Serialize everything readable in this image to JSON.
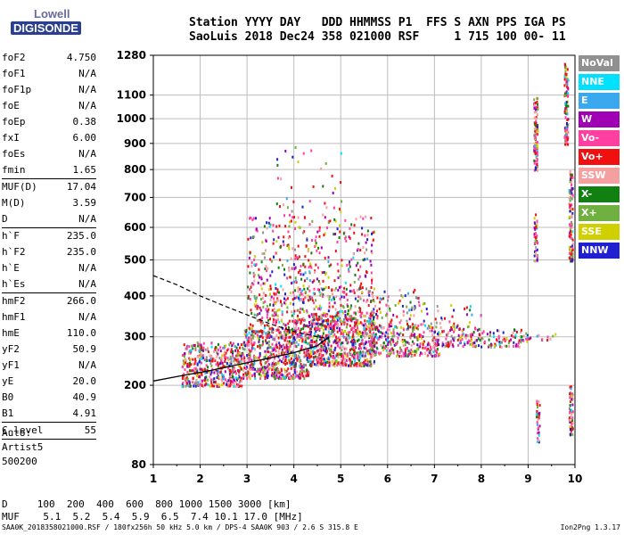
{
  "logo": {
    "line1": "Lowell",
    "line2": "DIGISONDE"
  },
  "header": {
    "line1": "Station YYYY DAY   DDD HHMMSS P1  FFS S AXN PPS IGA PS",
    "line2": "SaoLuis 2018 Dec24 358 021000 RSF     1 715 100 00- 11"
  },
  "params": [
    {
      "k": "foF2",
      "v": "4.750"
    },
    {
      "k": "foF1",
      "v": "N/A"
    },
    {
      "k": "foF1p",
      "v": "N/A"
    },
    {
      "k": "foE",
      "v": "N/A"
    },
    {
      "k": "foEp",
      "v": "0.38"
    },
    {
      "k": "fxI",
      "v": "6.00"
    },
    {
      "k": "foEs",
      "v": "N/A"
    },
    {
      "k": "fmin",
      "v": "1.65",
      "sep": true
    },
    {
      "k": "MUF(D)",
      "v": "17.04"
    },
    {
      "k": "M(D)",
      "v": "3.59"
    },
    {
      "k": "D",
      "v": "N/A",
      "sep": true
    },
    {
      "k": "h`F",
      "v": "235.0"
    },
    {
      "k": "h`F2",
      "v": "235.0"
    },
    {
      "k": "h`E",
      "v": "N/A"
    },
    {
      "k": "h`Es",
      "v": "N/A",
      "sep": true
    },
    {
      "k": "hmF2",
      "v": "266.0"
    },
    {
      "k": "hmF1",
      "v": "N/A"
    },
    {
      "k": "hmE",
      "v": "110.0"
    },
    {
      "k": "yF2",
      "v": "50.9"
    },
    {
      "k": "yF1",
      "v": "N/A"
    },
    {
      "k": "yE",
      "v": "20.0"
    },
    {
      "k": "B0",
      "v": "40.9"
    },
    {
      "k": "B1",
      "v": "4.91",
      "sep": true
    },
    {
      "k": "C-level",
      "v": "55",
      "sep": true
    }
  ],
  "auto": {
    "l1": "Auto:",
    "l2": "Artist5",
    "l3": "500200"
  },
  "bottom": {
    "d_row": "D     100  200  400  600  800 1000 1500 3000 [km]",
    "muf_row": "MUF    5.1  5.2  5.4  5.9  6.5  7.4 10.1 17.0 [MHz]"
  },
  "footer": {
    "text": "SAA0K_2018358021000.RSF / 180fx256h 50 kHz 5.0 km / DPS-4 SAA0K 903 / 2.6 S 315.8 E",
    "version": "Ion2Png 1.3.17"
  },
  "legend": [
    {
      "label": "NoVal",
      "color": "#909090"
    },
    {
      "label": "NNE",
      "color": "#00e0ff"
    },
    {
      "label": "E",
      "color": "#3aa8ee"
    },
    {
      "label": "W",
      "color": "#a000b4"
    },
    {
      "label": "Vo-",
      "color": "#ff40a0"
    },
    {
      "label": "Vo+",
      "color": "#f01010"
    },
    {
      "label": "SSW",
      "color": "#f4a0a0"
    },
    {
      "label": "X-",
      "color": "#108010"
    },
    {
      "label": "X+",
      "color": "#70b040"
    },
    {
      "label": "SSE",
      "color": "#d0d000"
    },
    {
      "label": "NNW",
      "color": "#2020d0"
    }
  ],
  "chart_data": {
    "type": "scatter",
    "xlabel": "",
    "ylabel": "",
    "x_ticks": [
      "1",
      "2",
      "3",
      "4",
      "5",
      "6",
      "7",
      "8",
      "9",
      "10"
    ],
    "xlim": [
      1,
      10
    ],
    "y_ticks": [
      "80",
      "200",
      "300",
      "400",
      "500",
      "600",
      "700",
      "800",
      "900",
      "1000",
      "1100",
      "1280"
    ],
    "y_tick_values": [
      80,
      200,
      300,
      400,
      500,
      600,
      700,
      800,
      900,
      1000,
      1100,
      1280
    ],
    "ylim": [
      80,
      1280
    ],
    "y_scale": "sqrt",
    "grid": true,
    "bands": [
      {
        "x": [
          1.6,
          2.9
        ],
        "y": [
          200,
          290
        ],
        "density": 1.6
      },
      {
        "x": [
          2.9,
          4.3
        ],
        "y": [
          215,
          320
        ],
        "density": 1.8
      },
      {
        "x": [
          4.3,
          5.7
        ],
        "y": [
          240,
          360
        ],
        "density": 1.8
      },
      {
        "x": [
          5.6,
          7.1
        ],
        "y": [
          260,
          330
        ],
        "density": 1.4
      },
      {
        "x": [
          7.1,
          9.0
        ],
        "y": [
          280,
          320
        ],
        "density": 1.0
      },
      {
        "x": [
          9.0,
          9.6
        ],
        "y": [
          295,
          312
        ],
        "density": 0.5
      },
      {
        "x": [
          3.0,
          5.7
        ],
        "y": [
          320,
          420
        ],
        "density": 0.7
      },
      {
        "x": [
          3.0,
          5.7
        ],
        "y": [
          420,
          640
        ],
        "density": 0.35
      },
      {
        "x": [
          3.6,
          5.0
        ],
        "y": [
          640,
          900
        ],
        "density": 0.08
      },
      {
        "x": [
          5.6,
          6.8
        ],
        "y": [
          330,
          420
        ],
        "density": 0.4
      },
      {
        "x": [
          6.8,
          8.0
        ],
        "y": [
          320,
          380
        ],
        "density": 0.3
      }
    ],
    "strips": [
      {
        "x": 9.15,
        "y": [
          800,
          1100
        ],
        "density": 0.6
      },
      {
        "x": 9.15,
        "y": [
          500,
          650
        ],
        "density": 0.4
      },
      {
        "x": 9.8,
        "y": [
          900,
          1250
        ],
        "density": 0.6
      },
      {
        "x": 9.9,
        "y": [
          500,
          800
        ],
        "density": 0.5
      },
      {
        "x": 9.9,
        "y": [
          120,
          200
        ],
        "density": 0.5
      },
      {
        "x": 9.2,
        "y": [
          110,
          180
        ],
        "density": 0.3
      }
    ],
    "trace_solid": {
      "x": [
        1.0,
        1.6,
        2.2,
        2.8,
        3.4,
        4.0,
        4.5,
        4.75
      ],
      "y": [
        208,
        218,
        228,
        240,
        252,
        265,
        280,
        300
      ]
    },
    "trace_dashed": {
      "x": [
        1.0,
        1.5,
        2.0,
        2.5,
        3.0,
        3.5,
        4.0,
        4.5,
        4.75
      ],
      "y": [
        455,
        430,
        400,
        375,
        352,
        330,
        312,
        300,
        296
      ]
    }
  }
}
